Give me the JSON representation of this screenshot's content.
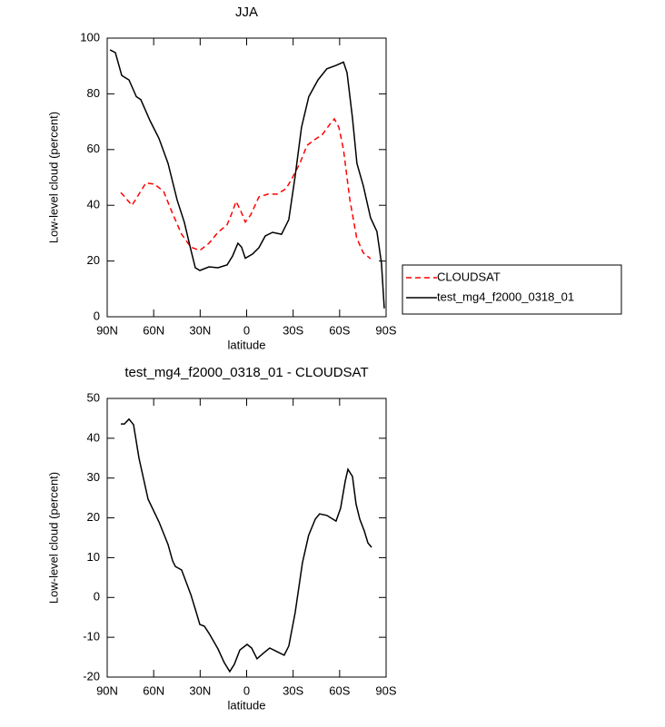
{
  "chart_data": [
    {
      "type": "line",
      "title": "JJA",
      "xlabel": "latitude",
      "ylabel": "Low-level cloud (percent)",
      "xlim": [
        90,
        -90
      ],
      "xticks": [
        {
          "value": 90,
          "label": "90N"
        },
        {
          "value": 60,
          "label": "60N"
        },
        {
          "value": 30,
          "label": "30N"
        },
        0,
        {
          "value": -30,
          "label": "30S"
        },
        {
          "value": -60,
          "label": "60S"
        },
        {
          "value": -90,
          "label": "90S"
        }
      ],
      "ylim": [
        0,
        100
      ],
      "yticks": [
        0,
        20,
        40,
        60,
        80,
        100
      ],
      "legend": "right",
      "series": [
        {
          "name": "CLOUDSAT",
          "color": "#ff0000",
          "style": "dashed",
          "x": [
            81.2,
            74,
            65,
            59.5,
            53.6,
            47.8,
            42,
            36,
            30.2,
            24.3,
            18.5,
            12.6,
            9.7,
            6.8,
            3.8,
            0.9,
            -2.6,
            -7.9,
            -13.8,
            -19.7,
            -25.5,
            -29.6,
            -34.3,
            -39,
            -43,
            -49,
            -53.6,
            -56.6,
            -59.5,
            -62.5,
            -66.6,
            -71,
            -75.2,
            -80
          ],
          "values": [
            44.6,
            40,
            48,
            47.6,
            45,
            37,
            29.6,
            25,
            23.8,
            26.4,
            30.3,
            33,
            37,
            41.4,
            38,
            34,
            36.5,
            43,
            44,
            44,
            46,
            50,
            55,
            61.5,
            63.2,
            65.5,
            69,
            71,
            68,
            60,
            42,
            28.3,
            23,
            20.8
          ]
        },
        {
          "name": "test_mg4_f2000_0318_01",
          "color": "#000000",
          "style": "solid",
          "x": [
            88.2,
            84.7,
            80.6,
            75.9,
            71.2,
            68.3,
            62.4,
            56.6,
            50.7,
            44.9,
            40.2,
            36,
            33.1,
            30.2,
            24.3,
            18.5,
            12.6,
            9.1,
            5.6,
            3.3,
            0.9,
            -3.8,
            -7.9,
            -12,
            -16.7,
            -22.5,
            -27.2,
            -31.3,
            -35.4,
            -40.1,
            -46,
            -51.8,
            -57.7,
            -62.5,
            -64.8,
            -68.3,
            -71.2,
            -75.3,
            -80,
            -84.1,
            -87,
            -88.8
          ],
          "values": [
            95.8,
            94.8,
            86.6,
            85,
            79,
            77.9,
            70.4,
            64,
            55,
            42,
            33.9,
            24,
            17.6,
            16.6,
            17.9,
            17.6,
            18.6,
            21.8,
            26.4,
            25,
            21,
            22.5,
            24.8,
            29,
            30.3,
            29.6,
            34.9,
            50.5,
            68,
            79,
            85,
            89,
            90.2,
            91.4,
            87.6,
            71.3,
            55,
            47,
            35.5,
            30.6,
            19.2,
            3
          ]
        }
      ]
    },
    {
      "type": "line",
      "title": "test_mg4_f2000_0318_01 - CLOUDSAT",
      "xlabel": "latitude",
      "ylabel": "Low-level cloud (percent)",
      "xlim": [
        90,
        -90
      ],
      "xticks": [
        {
          "value": 90,
          "label": "90N"
        },
        {
          "value": 60,
          "label": "60N"
        },
        {
          "value": 30,
          "label": "30N"
        },
        0,
        {
          "value": -30,
          "label": "30S"
        },
        {
          "value": -60,
          "label": "60S"
        },
        {
          "value": -90,
          "label": "90S"
        }
      ],
      "ylim": [
        -20,
        50
      ],
      "yticks": [
        -20,
        -10,
        0,
        10,
        20,
        30,
        40,
        50
      ],
      "series": [
        {
          "color": "#000000",
          "style": "solid",
          "x": [
            81.2,
            78.9,
            75.9,
            73,
            69.5,
            63.6,
            56.6,
            50.7,
            47.8,
            46,
            42,
            36,
            33,
            30.2,
            27.3,
            24.3,
            18.5,
            14.4,
            10.9,
            8,
            4.4,
            -0.3,
            -3.2,
            -6.7,
            -10.8,
            -14.9,
            -19.5,
            -24.2,
            -27.2,
            -31.3,
            -36,
            -40,
            -44.3,
            -47.1,
            -51.8,
            -57.7,
            -60.6,
            -63.6,
            -65.4,
            -68.3,
            -70.6,
            -73,
            -75.9,
            -78.3,
            -80.6
          ],
          "values": [
            43.6,
            43.6,
            44.8,
            43.4,
            35,
            24.7,
            19,
            13.3,
            9.2,
            7.8,
            6.9,
            0.7,
            -3.1,
            -6.8,
            -7.2,
            -9,
            -12.9,
            -16.4,
            -18.6,
            -16.8,
            -13.2,
            -11.8,
            -12.7,
            -15.4,
            -14,
            -12.7,
            -13.6,
            -14.5,
            -12.2,
            -3.8,
            8.7,
            15.6,
            19.7,
            21,
            20.6,
            19.2,
            22.4,
            29.2,
            32.2,
            30.4,
            23.5,
            19.7,
            16.7,
            13.7,
            12.6
          ]
        }
      ]
    }
  ]
}
